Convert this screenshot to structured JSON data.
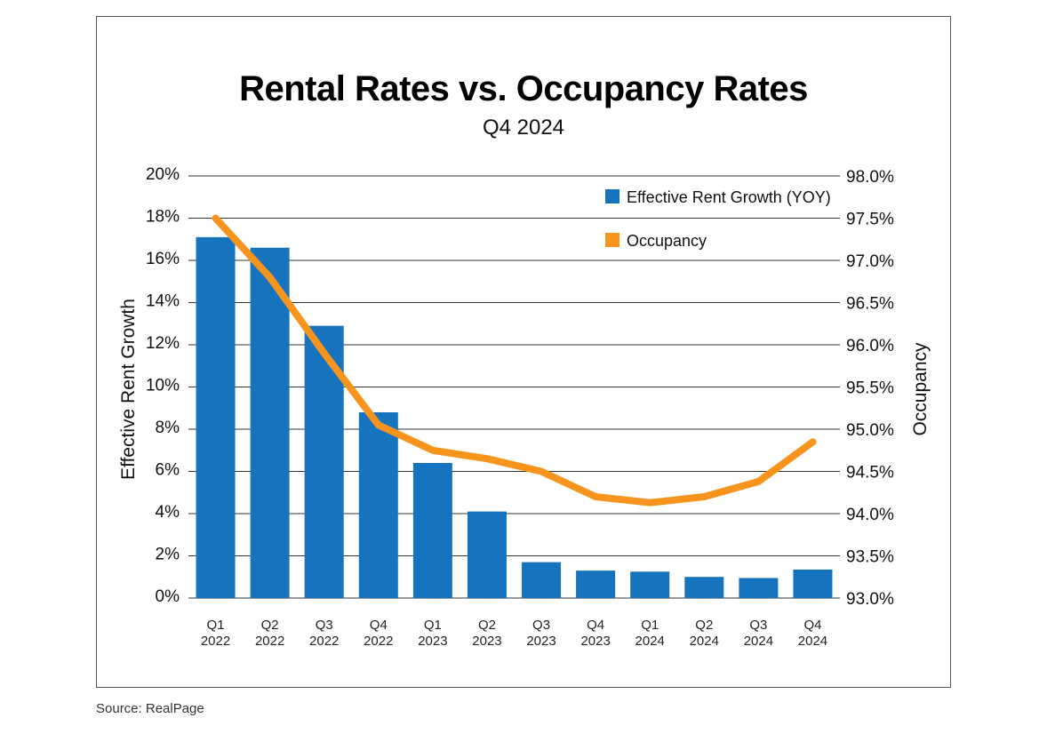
{
  "chart_data": {
    "type": "bar",
    "title": "Rental Rates vs. Occupancy Rates",
    "subtitle": "Q4 2024",
    "source": "Source: RealPage",
    "categories": [
      [
        "Q1",
        "2022"
      ],
      [
        "Q2",
        "2022"
      ],
      [
        "Q3",
        "2022"
      ],
      [
        "Q4",
        "2022"
      ],
      [
        "Q1",
        "2023"
      ],
      [
        "Q2",
        "2023"
      ],
      [
        "Q3",
        "2023"
      ],
      [
        "Q4",
        "2023"
      ],
      [
        "Q1",
        "2024"
      ],
      [
        "Q2",
        "2024"
      ],
      [
        "Q3",
        "2024"
      ],
      [
        "Q4",
        "2024"
      ]
    ],
    "series": [
      {
        "name": "Effective Rent Growth (YOY)",
        "type": "bar",
        "axis": "left",
        "color": "#1673bd",
        "values": [
          17.1,
          16.6,
          12.9,
          8.8,
          6.4,
          4.1,
          1.7,
          1.3,
          1.25,
          1.0,
          0.95,
          1.35
        ]
      },
      {
        "name": "Occupancy",
        "type": "line",
        "axis": "right",
        "color": "#f7941d",
        "values": [
          97.5,
          96.8,
          95.9,
          95.05,
          94.75,
          94.65,
          94.5,
          94.2,
          94.13,
          94.2,
          94.38,
          94.85
        ]
      }
    ],
    "ylabel": "Effective Rent Growth",
    "ylim": [
      0,
      20
    ],
    "yticks": [
      "0%",
      "2%",
      "4%",
      "6%",
      "8%",
      "10%",
      "12%",
      "14%",
      "16%",
      "18%",
      "20%"
    ],
    "y2label": "Occupancy",
    "y2lim": [
      93.0,
      98.0
    ],
    "y2ticks": [
      "93.0%",
      "93.5%",
      "94.0%",
      "94.5%",
      "95.0%",
      "95.5%",
      "96.0%",
      "96.5%",
      "97.0%",
      "97.5%",
      "98.0%"
    ],
    "grid": true,
    "legend": "top-right"
  }
}
